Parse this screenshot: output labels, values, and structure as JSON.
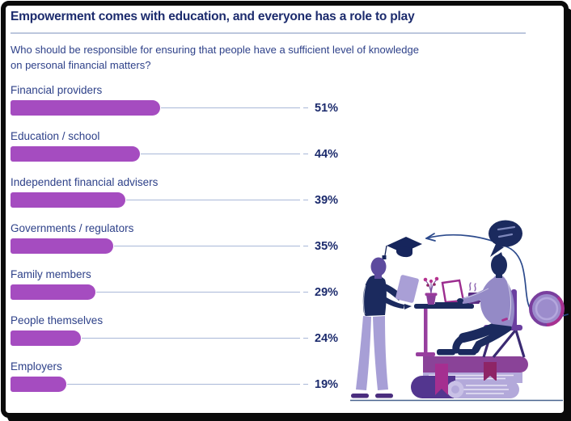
{
  "frame": {
    "background": "#ffffff",
    "border_color": "#0a0a0a"
  },
  "header": {
    "title": "Empowerment comes with education, and everyone has a role to play",
    "subtitle_lines": [
      "Who should be responsible for ensuring that people have a sufficient level of knowledge",
      "on personal financial matters?"
    ]
  },
  "chart_data": {
    "type": "bar",
    "orientation": "horizontal",
    "title": "Empowerment comes with education, and everyone has a role to play",
    "question": "Who should be responsible for ensuring that people have a sufficient level of knowledge on personal financial matters?",
    "categories": [
      "Financial providers",
      "Education / school",
      "Independent financial advisers",
      "Governments / regulators",
      "Family members",
      "People themselves",
      "Employers"
    ],
    "values": [
      51,
      44,
      39,
      35,
      29,
      24,
      19
    ],
    "value_labels": [
      "51%",
      "44%",
      "39%",
      "35%",
      "29%",
      "24%",
      "19%"
    ],
    "xlim": [
      0,
      100
    ],
    "grid": false,
    "legend": "none",
    "bar_color": "#a54cc0",
    "leader_line_color": "#a9b8d8",
    "category_label_color": "#2e4189",
    "value_label_color": "#1c2b6d"
  },
  "illustration": {
    "icons": [
      "curved-arrow-icon",
      "speech-bubble-icon",
      "graduation-cap-icon",
      "clock-icon",
      "book-stack",
      "desk",
      "potted-plant-icon",
      "laptop-icon",
      "coffee-mug-icon",
      "standing-person-reading",
      "chair",
      "seated-person-laptop"
    ],
    "palette": {
      "navy": "#1b2a5e",
      "lavender": "#a79fd6",
      "shirt_lavender": "#948ac6",
      "purple": "#8a4398",
      "dark_purple": "#53368f",
      "magenta": "#a52f90",
      "chair_purple": "#6b3fa0"
    }
  }
}
